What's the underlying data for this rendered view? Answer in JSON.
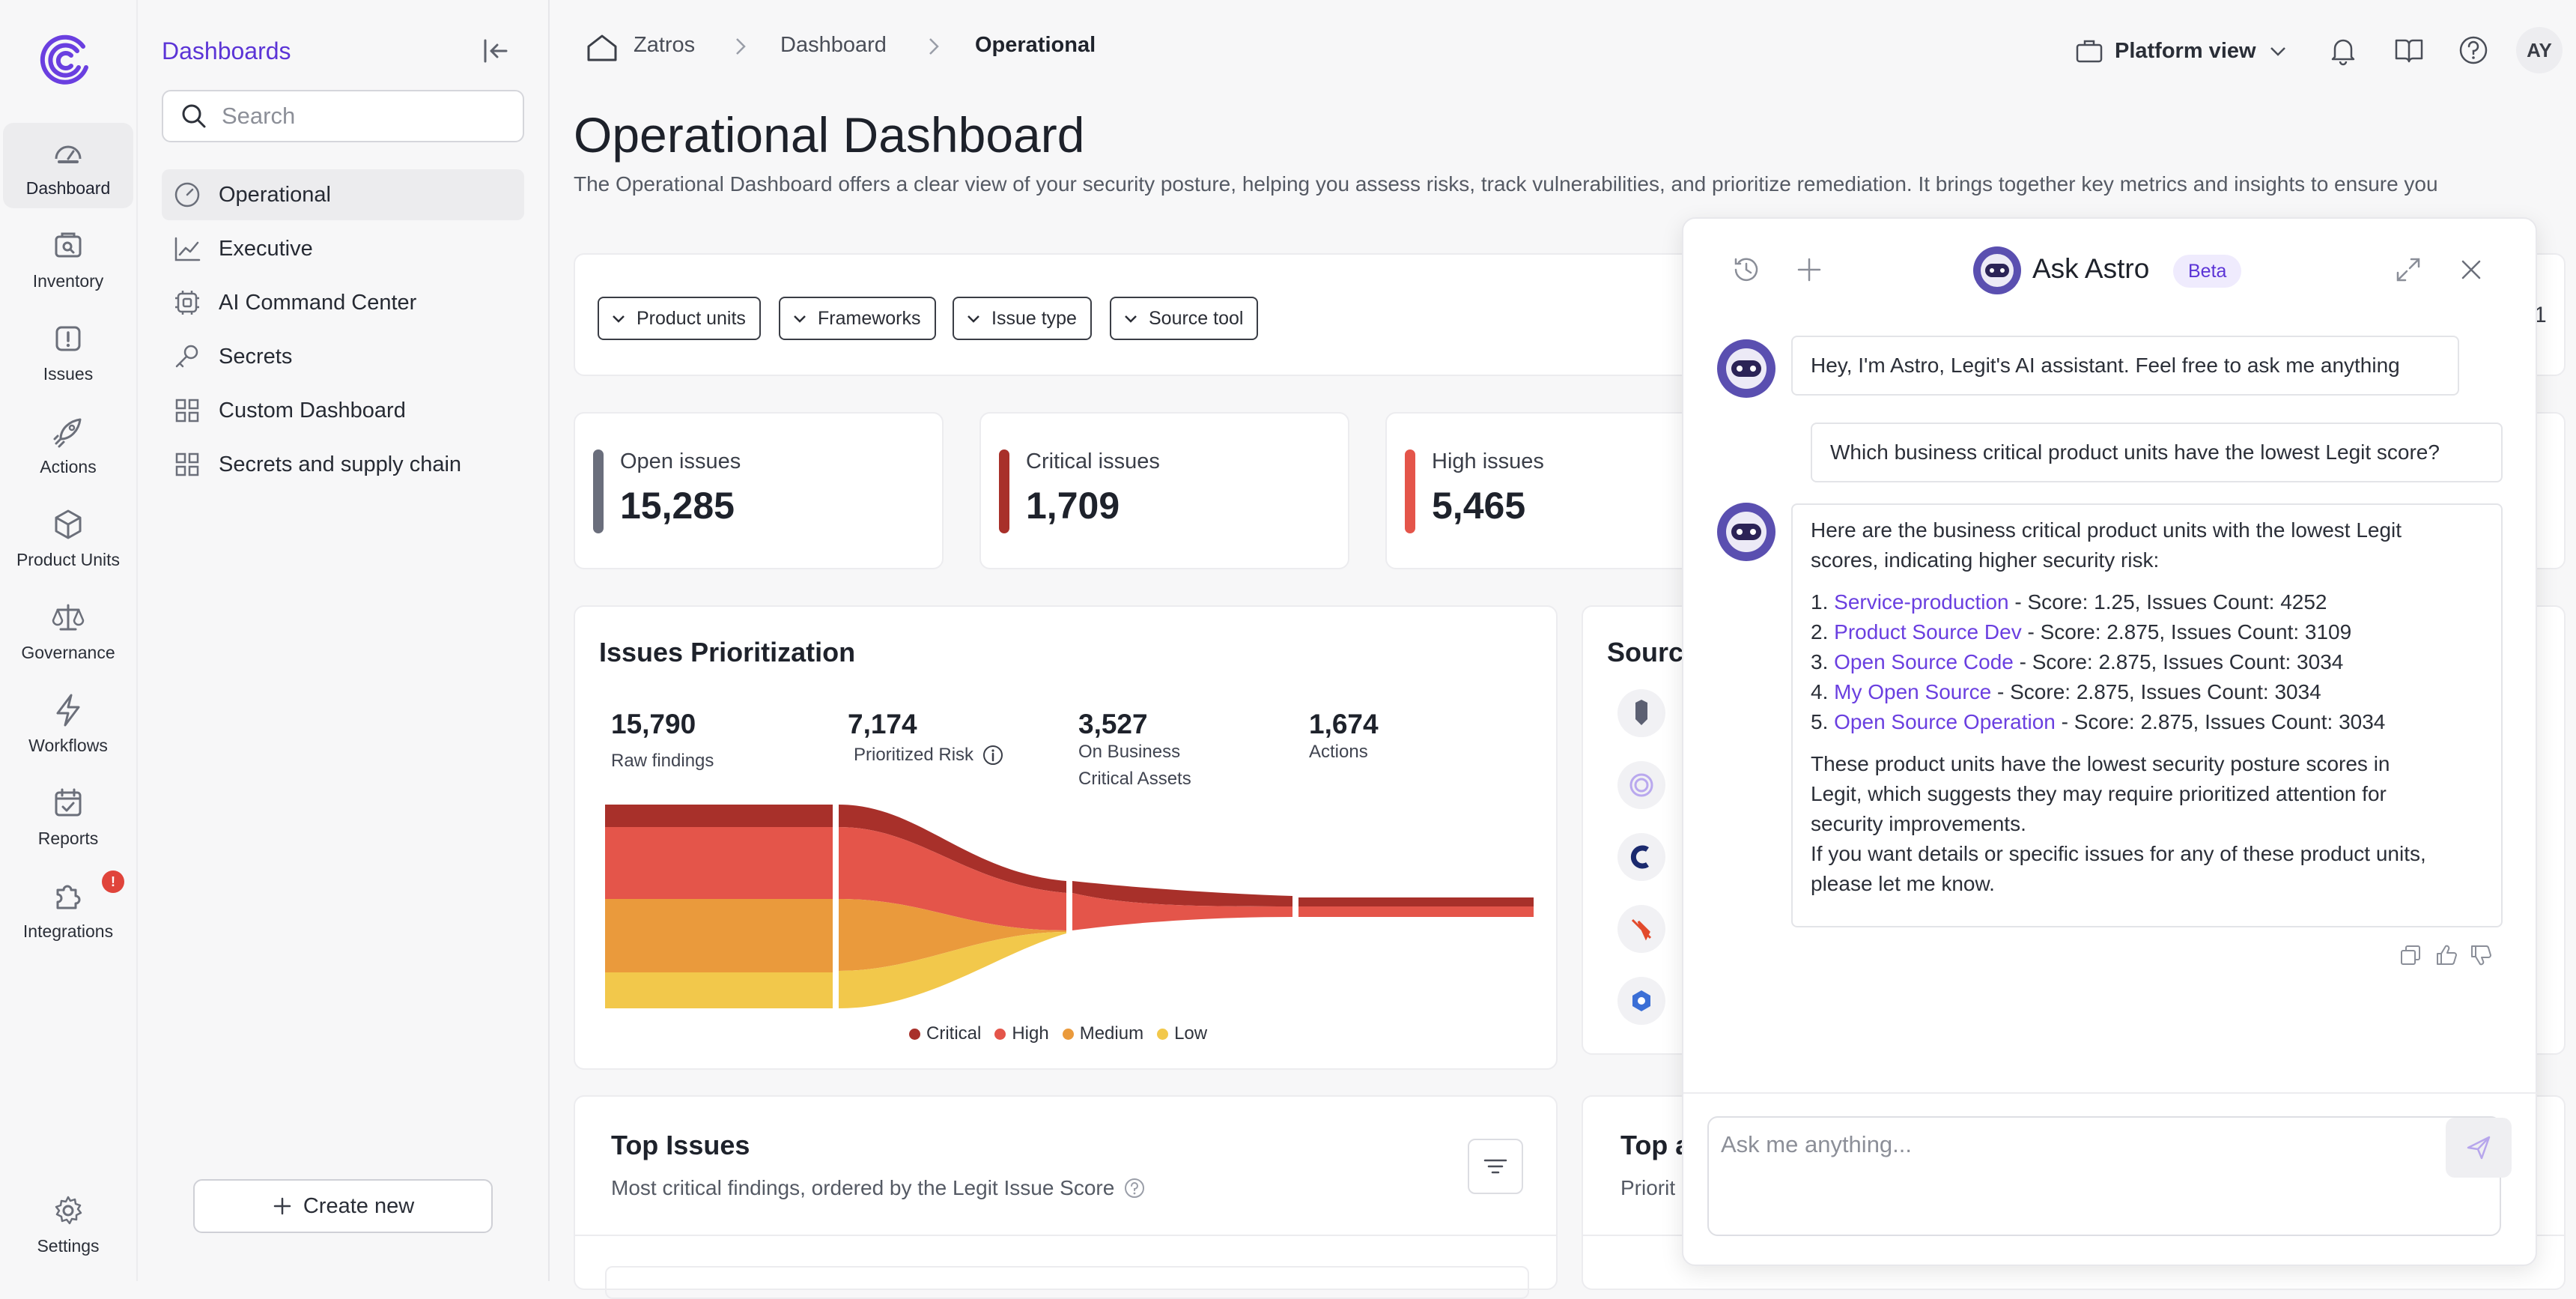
{
  "rail": {
    "items": [
      {
        "label": "Dashboard",
        "icon": "dashboard-gauge-icon"
      },
      {
        "label": "Inventory",
        "icon": "inventory-icon"
      },
      {
        "label": "Issues",
        "icon": "issues-icon"
      },
      {
        "label": "Actions",
        "icon": "rocket-icon"
      },
      {
        "label": "Product Units",
        "icon": "cube-icon"
      },
      {
        "label": "Governance",
        "icon": "scale-icon"
      },
      {
        "label": "Workflows",
        "icon": "lightning-icon"
      },
      {
        "label": "Reports",
        "icon": "calendar-check-icon"
      },
      {
        "label": "Integrations",
        "icon": "puzzle-icon"
      }
    ],
    "integrations_badge": "!",
    "settings_label": "Settings"
  },
  "subnav": {
    "title": "Dashboards",
    "search_placeholder": "Search",
    "items": [
      {
        "label": "Operational",
        "icon": "gauge-icon"
      },
      {
        "label": "Executive",
        "icon": "trend-chart-icon"
      },
      {
        "label": "AI Command Center",
        "icon": "chip-icon"
      },
      {
        "label": "Secrets",
        "icon": "key-icon"
      },
      {
        "label": "Custom Dashboard",
        "icon": "grid-icon"
      },
      {
        "label": "Secrets and supply chain",
        "icon": "grid-icon"
      }
    ],
    "create_label": "Create new"
  },
  "header": {
    "breadcrumb": [
      "Zatros",
      "Dashboard",
      "Operational"
    ],
    "platform_label": "Platform view",
    "avatar_initials": "AY"
  },
  "page": {
    "title": "Operational Dashboard",
    "description": "The Operational Dashboard offers a clear view of your security posture, helping you assess risks, track vulnerabilities, and prioritize remediation. It brings together key metrics and insights to ensure you"
  },
  "filters": [
    "Product units",
    "Frameworks",
    "Issue type",
    "Source tool"
  ],
  "filter_card_right_text": "1",
  "stats": [
    {
      "label": "Open issues",
      "value": "15,285",
      "color": "#6a6e7c"
    },
    {
      "label": "Critical issues",
      "value": "1,709",
      "color": "#a8302a"
    },
    {
      "label": "High issues",
      "value": "5,465",
      "color": "#e4554a"
    }
  ],
  "prioritization": {
    "title": "Issues Prioritization",
    "metrics": [
      {
        "value": "15,790",
        "label": "Raw findings"
      },
      {
        "value": "7,174",
        "label": "Prioritized Risk"
      },
      {
        "value": "3,527",
        "label": "On Business Critical Assets"
      },
      {
        "value": "1,674",
        "label": "Actions"
      }
    ],
    "legend": [
      {
        "name": "Critical",
        "color": "#a8302a"
      },
      {
        "name": "High",
        "color": "#e4554a"
      },
      {
        "name": "Medium",
        "color": "#ea9a3c"
      },
      {
        "name": "Low",
        "color": "#f2c84b"
      }
    ]
  },
  "sources_card": {
    "title_visible": "Sourc"
  },
  "top_issues": {
    "title": "Top Issues",
    "subtitle": "Most critical findings, ordered by the Legit Issue Score"
  },
  "top_right_card": {
    "title_visible": "Top a",
    "subtitle_visible": "Priorit"
  },
  "astro": {
    "title": "Ask Astro",
    "badge": "Beta",
    "greeting": "Hey, I'm Astro, Legit's AI assistant. Feel free to ask me anything",
    "question": "Which business critical product units have the lowest Legit score?",
    "answer_intro_1": "Here are the business critical product units with the lowest Legit",
    "answer_intro_2": "scores, indicating higher security risk:",
    "answer_items": [
      {
        "num": "1.",
        "name": "Service-production",
        "detail": " - Score: 1.25, Issues Count: 4252"
      },
      {
        "num": "2.",
        "name": "Product Source Dev",
        "detail": " - Score: 2.875, Issues Count: 3109"
      },
      {
        "num": "3.",
        "name": "Open Source Code",
        "detail": " - Score: 2.875, Issues Count: 3034"
      },
      {
        "num": "4.",
        "name": "My Open Source",
        "detail": " - Score: 2.875, Issues Count: 3034"
      },
      {
        "num": "5.",
        "name": "Open Source Operation",
        "detail": " - Score: 2.875, Issues Count: 3034"
      }
    ],
    "answer_outro": [
      "These product units have the lowest security posture scores in",
      "Legit, which suggests they may require prioritized attention for",
      "security improvements.",
      "If you want details or specific issues for any of these product units,",
      "please let me know."
    ],
    "input_placeholder": "Ask me anything..."
  }
}
